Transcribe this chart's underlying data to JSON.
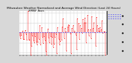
{
  "title": "Milwaukee Weather Normalized and Average Wind Direction (Last 24 Hours)",
  "subtitle": "KMIW  Asos",
  "bg_color": "#d8d8d8",
  "plot_bg_color": "#ffffff",
  "bar_color": "#ff0000",
  "avg_line_color": "#4444ff",
  "avg_line_style": "--",
  "avg_value": 0.52,
  "num_points": 96,
  "seed": 42,
  "ylim": [
    -0.05,
    1.05
  ],
  "title_fontsize": 3.2,
  "subtitle_fontsize": 2.8,
  "tick_fontsize": 2.5,
  "grid_color": "#c0c0c0",
  "ytick_labels": [
    "",
    "",
    "",
    "",
    ""
  ]
}
